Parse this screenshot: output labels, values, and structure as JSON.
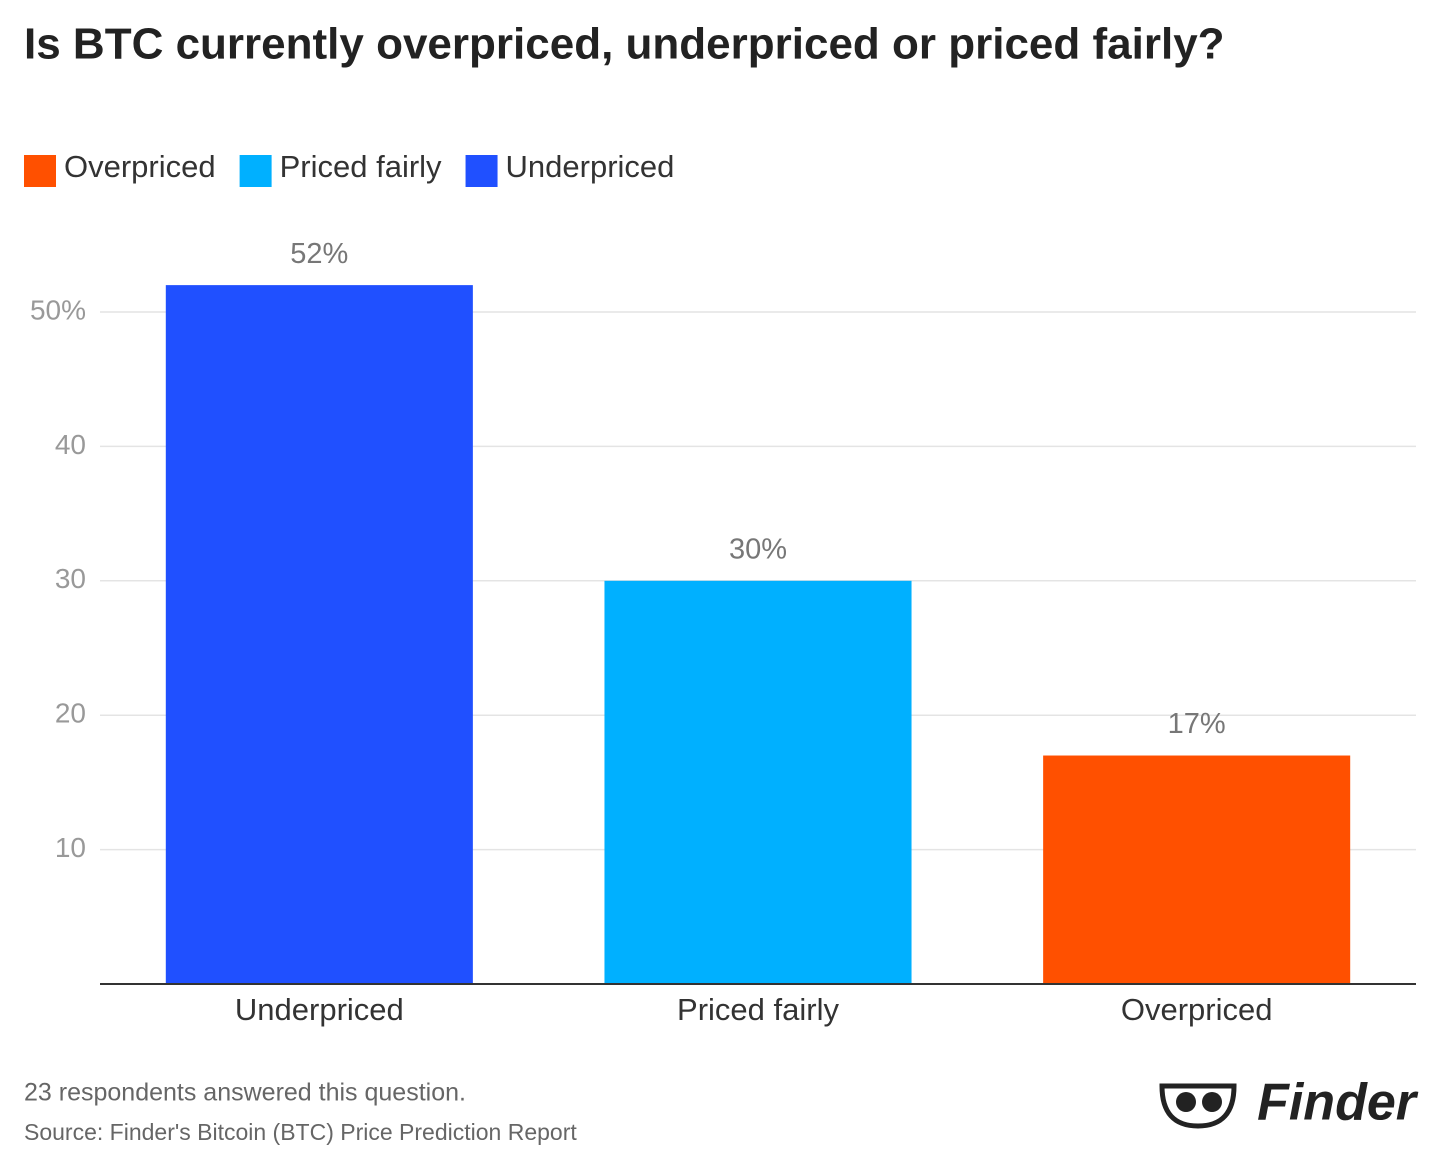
{
  "chart_data": {
    "type": "bar",
    "title": "Is BTC currently overpriced, underpriced or priced fairly?",
    "categories": [
      "Underpriced",
      "Priced fairly",
      "Overpriced"
    ],
    "values": [
      52,
      30,
      17
    ],
    "value_labels": [
      "52%",
      "30%",
      "17%"
    ],
    "colors": [
      "#2050ff",
      "#00b0ff",
      "#ff5000"
    ],
    "legend": [
      {
        "name": "Overpriced",
        "color": "#ff5000"
      },
      {
        "name": "Priced fairly",
        "color": "#00b0ff"
      },
      {
        "name": "Underpriced",
        "color": "#2050ff"
      }
    ],
    "ylim": [
      0,
      55
    ],
    "yticks": [
      10,
      20,
      30,
      40,
      {
        "value": 50,
        "label": "50%"
      }
    ],
    "grid": true,
    "note": "23 respondents answered this question.",
    "source": "Source: Finder's Bitcoin (BTC) Price Prediction Report",
    "logo_text": "Finder"
  }
}
